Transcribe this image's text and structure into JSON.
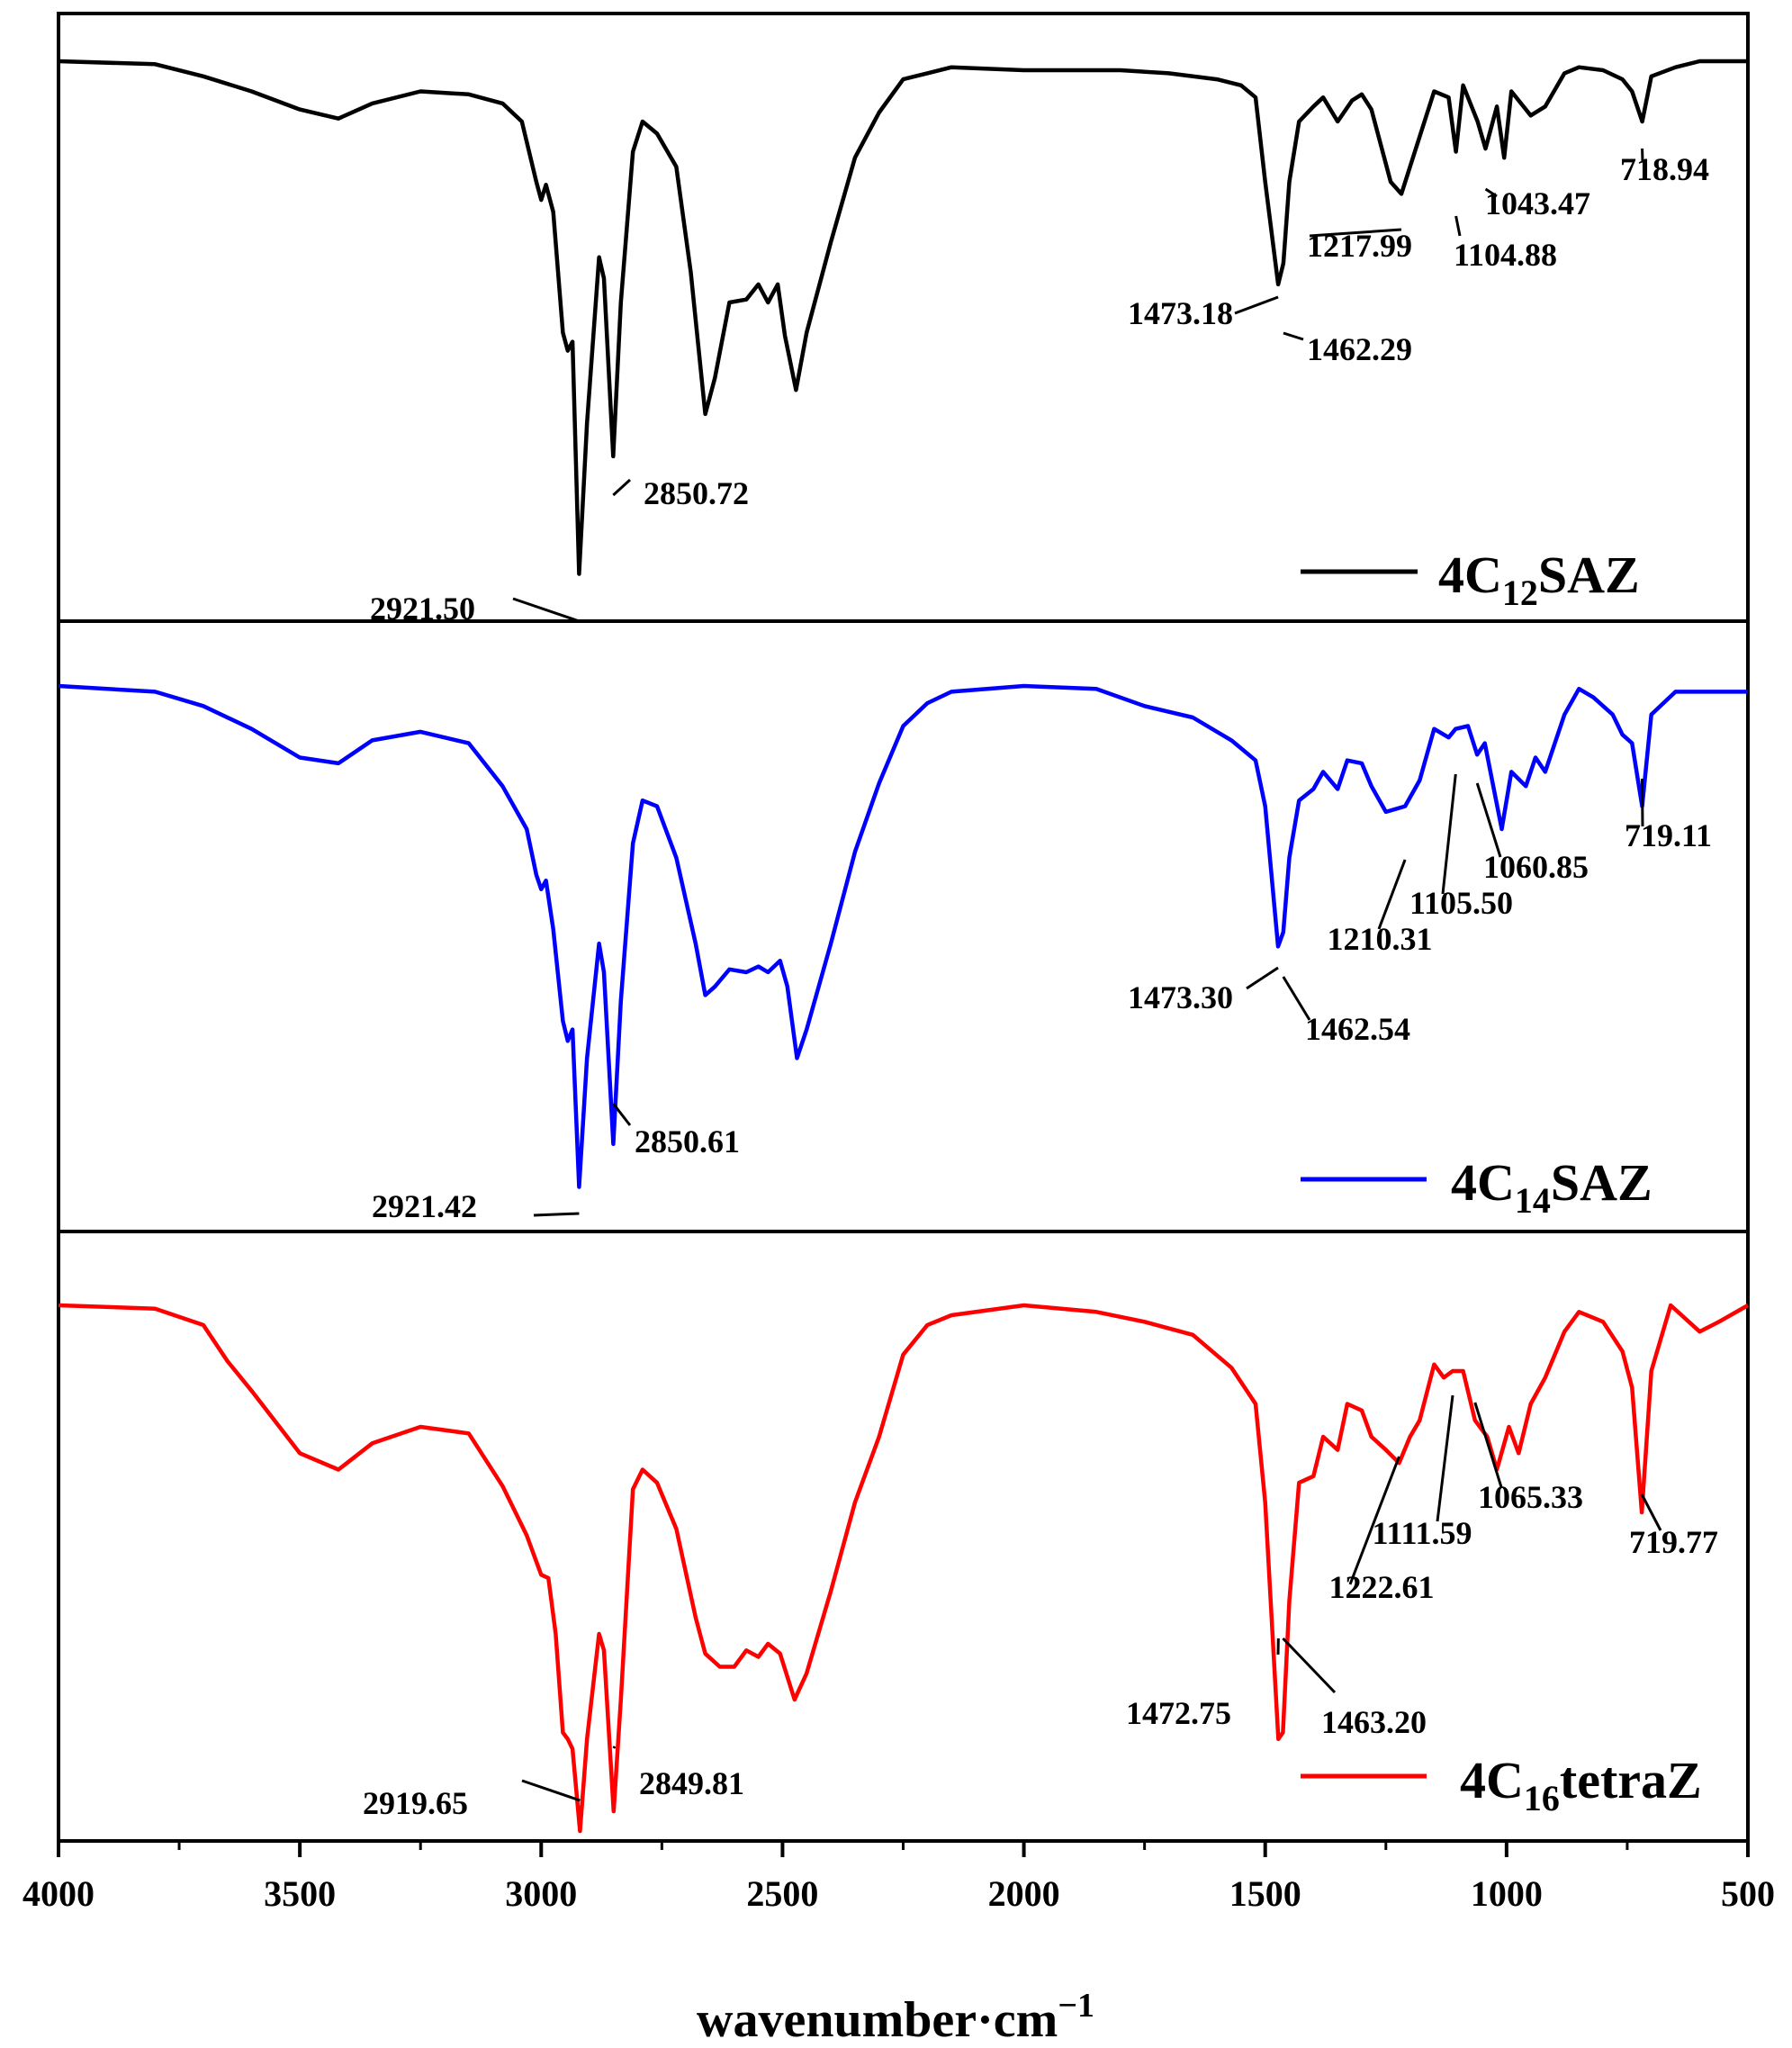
{
  "chart_data": {
    "type": "line",
    "xlabel": {
      "main": "wavenumber·cm",
      "sup": "−1"
    },
    "xlim": [
      4000,
      500
    ],
    "xticks": [
      4000,
      3500,
      3000,
      2500,
      2000,
      1500,
      1000,
      500
    ],
    "grid": false,
    "legend_position": "bottom-right of each panel",
    "panels": [
      {
        "color": "#000000",
        "legend": {
          "prefix": "4C",
          "sub": "12",
          "suffix": "SAZ"
        },
        "spectrum": [
          [
            4000,
            0.0
          ],
          [
            3800,
            0.01
          ],
          [
            3700,
            0.05
          ],
          [
            3600,
            0.1
          ],
          [
            3500,
            0.16
          ],
          [
            3420,
            0.19
          ],
          [
            3350,
            0.14
          ],
          [
            3250,
            0.1
          ],
          [
            3150,
            0.11
          ],
          [
            3080,
            0.14
          ],
          [
            3040,
            0.2
          ],
          [
            3010,
            0.4
          ],
          [
            3000,
            0.46
          ],
          [
            2990,
            0.41
          ],
          [
            2975,
            0.5
          ],
          [
            2955,
            0.9
          ],
          [
            2945,
            0.96
          ],
          [
            2935,
            0.93
          ],
          [
            2921.5,
            1.7
          ],
          [
            2905,
            1.2
          ],
          [
            2880,
            0.65
          ],
          [
            2870,
            0.72
          ],
          [
            2850.72,
            1.31
          ],
          [
            2835,
            0.8
          ],
          [
            2810,
            0.3
          ],
          [
            2790,
            0.2
          ],
          [
            2760,
            0.24
          ],
          [
            2720,
            0.35
          ],
          [
            2690,
            0.7
          ],
          [
            2660,
            1.17
          ],
          [
            2640,
            1.05
          ],
          [
            2610,
            0.8
          ],
          [
            2575,
            0.79
          ],
          [
            2550,
            0.74
          ],
          [
            2530,
            0.8
          ],
          [
            2510,
            0.74
          ],
          [
            2495,
            0.91
          ],
          [
            2472,
            1.09
          ],
          [
            2450,
            0.9
          ],
          [
            2400,
            0.6
          ],
          [
            2350,
            0.32
          ],
          [
            2300,
            0.17
          ],
          [
            2250,
            0.06
          ],
          [
            2200,
            0.04
          ],
          [
            2150,
            0.02
          ],
          [
            2000,
            0.03
          ],
          [
            1800,
            0.03
          ],
          [
            1700,
            0.04
          ],
          [
            1600,
            0.06
          ],
          [
            1550,
            0.08
          ],
          [
            1520,
            0.12
          ],
          [
            1500,
            0.4
          ],
          [
            1473.18,
            0.74
          ],
          [
            1462.29,
            0.67
          ],
          [
            1450,
            0.4
          ],
          [
            1430,
            0.2
          ],
          [
            1400,
            0.15
          ],
          [
            1380,
            0.12
          ],
          [
            1350,
            0.2
          ],
          [
            1320,
            0.13
          ],
          [
            1300,
            0.11
          ],
          [
            1280,
            0.16
          ],
          [
            1260,
            0.28
          ],
          [
            1240,
            0.4
          ],
          [
            1217.99,
            0.44
          ],
          [
            1200,
            0.35
          ],
          [
            1180,
            0.25
          ],
          [
            1150,
            0.1
          ],
          [
            1120,
            0.12
          ],
          [
            1104.88,
            0.3
          ],
          [
            1090,
            0.08
          ],
          [
            1060,
            0.2
          ],
          [
            1043.47,
            0.29
          ],
          [
            1020,
            0.15
          ],
          [
            1005,
            0.32
          ],
          [
            990,
            0.1
          ],
          [
            950,
            0.18
          ],
          [
            920,
            0.15
          ],
          [
            880,
            0.04
          ],
          [
            850,
            0.02
          ],
          [
            800,
            0.03
          ],
          [
            760,
            0.06
          ],
          [
            740,
            0.1
          ],
          [
            718.94,
            0.2
          ],
          [
            700,
            0.05
          ],
          [
            650,
            0.02
          ],
          [
            600,
            0.0
          ],
          [
            500,
            0.0
          ]
        ],
        "annotations": [
          {
            "label": "2921.50",
            "x": 2921.5
          },
          {
            "label": "2850.72",
            "x": 2850.72
          },
          {
            "label": "1473.18",
            "x": 1473.18
          },
          {
            "label": "1462.29",
            "x": 1462.29
          },
          {
            "label": "1217.99",
            "x": 1217.99
          },
          {
            "label": "1104.88",
            "x": 1104.88
          },
          {
            "label": "1043.47",
            "x": 1043.47
          },
          {
            "label": "718.94",
            "x": 718.94
          }
        ]
      },
      {
        "color": "#0000ff",
        "legend": {
          "prefix": "4C",
          "sub": "14",
          "suffix": "SAZ"
        },
        "spectrum": [
          [
            4000,
            0.0
          ],
          [
            3800,
            0.02
          ],
          [
            3700,
            0.07
          ],
          [
            3600,
            0.15
          ],
          [
            3500,
            0.25
          ],
          [
            3420,
            0.27
          ],
          [
            3350,
            0.19
          ],
          [
            3250,
            0.16
          ],
          [
            3150,
            0.2
          ],
          [
            3080,
            0.35
          ],
          [
            3030,
            0.5
          ],
          [
            3010,
            0.66
          ],
          [
            3000,
            0.71
          ],
          [
            2990,
            0.68
          ],
          [
            2975,
            0.85
          ],
          [
            2955,
            1.17
          ],
          [
            2945,
            1.24
          ],
          [
            2935,
            1.2
          ],
          [
            2921.42,
            1.75
          ],
          [
            2905,
            1.3
          ],
          [
            2880,
            0.9
          ],
          [
            2870,
            1.0
          ],
          [
            2850.61,
            1.6
          ],
          [
            2835,
            1.1
          ],
          [
            2810,
            0.55
          ],
          [
            2790,
            0.4
          ],
          [
            2760,
            0.42
          ],
          [
            2720,
            0.6
          ],
          [
            2680,
            0.9
          ],
          [
            2660,
            1.08
          ],
          [
            2640,
            1.05
          ],
          [
            2610,
            0.99
          ],
          [
            2575,
            1.0
          ],
          [
            2550,
            0.98
          ],
          [
            2530,
            1.0
          ],
          [
            2505,
            0.96
          ],
          [
            2490,
            1.05
          ],
          [
            2470,
            1.3
          ],
          [
            2450,
            1.2
          ],
          [
            2400,
            0.9
          ],
          [
            2350,
            0.58
          ],
          [
            2300,
            0.34
          ],
          [
            2250,
            0.14
          ],
          [
            2200,
            0.06
          ],
          [
            2150,
            0.02
          ],
          [
            2000,
            0.0
          ],
          [
            1850,
            0.01
          ],
          [
            1750,
            0.07
          ],
          [
            1650,
            0.11
          ],
          [
            1570,
            0.19
          ],
          [
            1520,
            0.26
          ],
          [
            1500,
            0.42
          ],
          [
            1473.3,
            0.91
          ],
          [
            1462.54,
            0.86
          ],
          [
            1450,
            0.6
          ],
          [
            1430,
            0.4
          ],
          [
            1400,
            0.36
          ],
          [
            1380,
            0.3
          ],
          [
            1350,
            0.36
          ],
          [
            1330,
            0.26
          ],
          [
            1300,
            0.27
          ],
          [
            1280,
            0.35
          ],
          [
            1250,
            0.44
          ],
          [
            1210.31,
            0.42
          ],
          [
            1180,
            0.33
          ],
          [
            1150,
            0.15
          ],
          [
            1120,
            0.18
          ],
          [
            1105.5,
            0.15
          ],
          [
            1080,
            0.14
          ],
          [
            1060.85,
            0.24
          ],
          [
            1045,
            0.2
          ],
          [
            1010,
            0.5
          ],
          [
            990,
            0.3
          ],
          [
            960,
            0.35
          ],
          [
            940,
            0.25
          ],
          [
            920,
            0.3
          ],
          [
            880,
            0.1
          ],
          [
            850,
            0.01
          ],
          [
            820,
            0.04
          ],
          [
            780,
            0.1
          ],
          [
            760,
            0.17
          ],
          [
            740,
            0.2
          ],
          [
            719.11,
            0.42
          ],
          [
            700,
            0.1
          ],
          [
            650,
            0.02
          ],
          [
            600,
            0.02
          ],
          [
            500,
            0.02
          ]
        ],
        "annotations": [
          {
            "label": "2921.42",
            "x": 2921.42
          },
          {
            "label": "2850.61",
            "x": 2850.61
          },
          {
            "label": "1473.30",
            "x": 1473.3
          },
          {
            "label": "1462.54",
            "x": 1462.54
          },
          {
            "label": "1210.31",
            "x": 1210.31
          },
          {
            "label": "1105.50",
            "x": 1105.5
          },
          {
            "label": "1060.85",
            "x": 1060.85
          },
          {
            "label": "719.11",
            "x": 719.11
          }
        ]
      },
      {
        "color": "#ff0000",
        "legend": {
          "prefix": "4C",
          "sub": "16",
          "suffix": "tetraZ"
        },
        "spectrum": [
          [
            4000,
            0.0
          ],
          [
            3800,
            0.01
          ],
          [
            3700,
            0.06
          ],
          [
            3650,
            0.17
          ],
          [
            3600,
            0.26
          ],
          [
            3500,
            0.45
          ],
          [
            3420,
            0.5
          ],
          [
            3350,
            0.42
          ],
          [
            3250,
            0.37
          ],
          [
            3150,
            0.39
          ],
          [
            3080,
            0.55
          ],
          [
            3030,
            0.7
          ],
          [
            3010,
            0.78
          ],
          [
            3000,
            0.82
          ],
          [
            2985,
            0.83
          ],
          [
            2970,
            1.0
          ],
          [
            2955,
            1.3
          ],
          [
            2945,
            1.32
          ],
          [
            2935,
            1.35
          ],
          [
            2919.65,
            1.6
          ],
          [
            2905,
            1.32
          ],
          [
            2880,
            1.0
          ],
          [
            2870,
            1.05
          ],
          [
            2849.81,
            1.54
          ],
          [
            2835,
            1.2
          ],
          [
            2810,
            0.56
          ],
          [
            2790,
            0.5
          ],
          [
            2760,
            0.54
          ],
          [
            2720,
            0.68
          ],
          [
            2680,
            0.95
          ],
          [
            2660,
            1.06
          ],
          [
            2630,
            1.1
          ],
          [
            2600,
            1.1
          ],
          [
            2575,
            1.05
          ],
          [
            2550,
            1.07
          ],
          [
            2530,
            1.03
          ],
          [
            2505,
            1.06
          ],
          [
            2475,
            1.2
          ],
          [
            2450,
            1.12
          ],
          [
            2400,
            0.87
          ],
          [
            2350,
            0.6
          ],
          [
            2300,
            0.4
          ],
          [
            2250,
            0.15
          ],
          [
            2200,
            0.06
          ],
          [
            2150,
            0.03
          ],
          [
            2000,
            0.0
          ],
          [
            1850,
            0.02
          ],
          [
            1750,
            0.05
          ],
          [
            1650,
            0.09
          ],
          [
            1570,
            0.19
          ],
          [
            1520,
            0.3
          ],
          [
            1500,
            0.6
          ],
          [
            1472.75,
            1.32
          ],
          [
            1463.2,
            1.3
          ],
          [
            1450,
            0.9
          ],
          [
            1430,
            0.54
          ],
          [
            1400,
            0.52
          ],
          [
            1380,
            0.4
          ],
          [
            1350,
            0.44
          ],
          [
            1330,
            0.3
          ],
          [
            1300,
            0.32
          ],
          [
            1280,
            0.4
          ],
          [
            1250,
            0.44
          ],
          [
            1222.61,
            0.48
          ],
          [
            1200,
            0.4
          ],
          [
            1180,
            0.35
          ],
          [
            1150,
            0.18
          ],
          [
            1130,
            0.22
          ],
          [
            1111.59,
            0.2
          ],
          [
            1090,
            0.2
          ],
          [
            1065.33,
            0.35
          ],
          [
            1040,
            0.4
          ],
          [
            1020,
            0.5
          ],
          [
            995,
            0.37
          ],
          [
            975,
            0.45
          ],
          [
            950,
            0.3
          ],
          [
            920,
            0.22
          ],
          [
            880,
            0.08
          ],
          [
            850,
            0.02
          ],
          [
            800,
            0.05
          ],
          [
            760,
            0.14
          ],
          [
            740,
            0.25
          ],
          [
            719.77,
            0.63
          ],
          [
            700,
            0.2
          ],
          [
            660,
            0.0
          ],
          [
            600,
            0.08
          ],
          [
            560,
            0.05
          ],
          [
            500,
            0.0
          ]
        ],
        "annotations": [
          {
            "label": "2919.65",
            "x": 2919.65
          },
          {
            "label": "2849.81",
            "x": 2849.81
          },
          {
            "label": "1472.75",
            "x": 1472.75
          },
          {
            "label": "1463.20",
            "x": 1463.2
          },
          {
            "label": "1222.61",
            "x": 1222.61
          },
          {
            "label": "1111.59",
            "x": 1111.59
          },
          {
            "label": "1065.33",
            "x": 1065.33
          },
          {
            "label": "719.77",
            "x": 719.77
          }
        ]
      }
    ]
  }
}
